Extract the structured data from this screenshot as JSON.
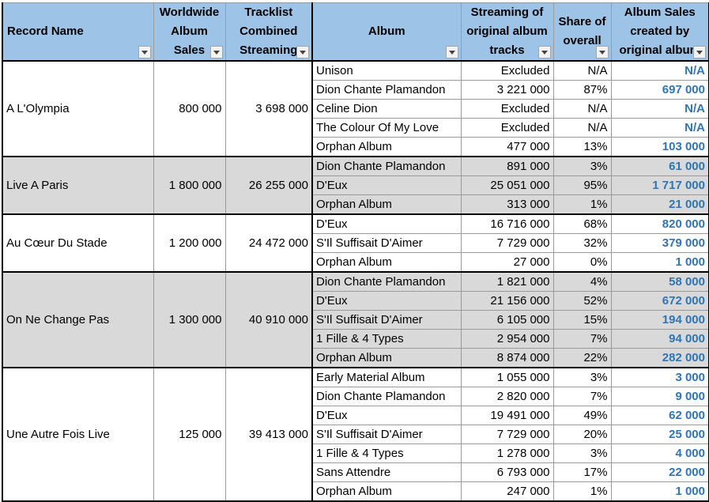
{
  "headers": [
    {
      "lines": [
        "Record Name"
      ]
    },
    {
      "lines": [
        "Worldwide",
        "Album",
        "Sales"
      ]
    },
    {
      "lines": [
        "Tracklist",
        "Combined",
        "Streaming"
      ]
    },
    {
      "lines": [
        "Album"
      ]
    },
    {
      "lines": [
        "Streaming of",
        "original album",
        "tracks"
      ]
    },
    {
      "lines": [
        "Share of",
        "overall"
      ]
    },
    {
      "lines": [
        "Album Sales",
        "created  by",
        "original album"
      ]
    }
  ],
  "records": [
    {
      "name": "A L'Olympia",
      "sales": "800 000",
      "streaming": "3 698 000",
      "grey": false,
      "rows": [
        {
          "album": "Unison",
          "stream": "Excluded",
          "share": "N/A",
          "sales": "N/A"
        },
        {
          "album": "Dion Chante Plamandon",
          "stream": "3 221 000",
          "share": "87%",
          "sales": "697 000"
        },
        {
          "album": "Celine Dion",
          "stream": "Excluded",
          "share": "N/A",
          "sales": "N/A"
        },
        {
          "album": "The Colour Of My Love",
          "stream": "Excluded",
          "share": "N/A",
          "sales": "N/A"
        },
        {
          "album": "Orphan Album",
          "stream": "477 000",
          "share": "13%",
          "sales": "103 000"
        }
      ]
    },
    {
      "name": "Live A Paris",
      "sales": "1 800 000",
      "streaming": "26 255 000",
      "grey": true,
      "rows": [
        {
          "album": "Dion Chante Plamandon",
          "stream": "891 000",
          "share": "3%",
          "sales": "61 000"
        },
        {
          "album": "D'Eux",
          "stream": "25 051 000",
          "share": "95%",
          "sales": "1 717 000"
        },
        {
          "album": "Orphan Album",
          "stream": "313 000",
          "share": "1%",
          "sales": "21 000"
        }
      ]
    },
    {
      "name": "Au Cœur Du Stade",
      "sales": "1 200 000",
      "streaming": "24 472 000",
      "grey": false,
      "rows": [
        {
          "album": "D'Eux",
          "stream": "16 716 000",
          "share": "68%",
          "sales": "820 000"
        },
        {
          "album": "S'Il Suffisait D'Aimer",
          "stream": "7 729 000",
          "share": "32%",
          "sales": "379 000"
        },
        {
          "album": "Orphan Album",
          "stream": "27 000",
          "share": "0%",
          "sales": "1 000"
        }
      ]
    },
    {
      "name": "On Ne Change Pas",
      "sales": "1 300 000",
      "streaming": "40 910 000",
      "grey": true,
      "rows": [
        {
          "album": "Dion Chante Plamandon",
          "stream": "1 821 000",
          "share": "4%",
          "sales": "58 000"
        },
        {
          "album": "D'Eux",
          "stream": "21 156 000",
          "share": "52%",
          "sales": "672 000"
        },
        {
          "album": "S'Il Suffisait D'Aimer",
          "stream": "6 105 000",
          "share": "15%",
          "sales": "194 000"
        },
        {
          "album": "1 Fille & 4 Types",
          "stream": "2 954 000",
          "share": "7%",
          "sales": "94 000"
        },
        {
          "album": "Orphan Album",
          "stream": "8 874 000",
          "share": "22%",
          "sales": "282 000"
        }
      ]
    },
    {
      "name": "Une Autre Fois Live",
      "sales": "125 000",
      "streaming": "39 413 000",
      "grey": false,
      "rows": [
        {
          "album": "Early Material Album",
          "stream": "1 055 000",
          "share": "3%",
          "sales": "3 000"
        },
        {
          "album": "Dion Chante Plamandon",
          "stream": "2 820 000",
          "share": "7%",
          "sales": "9 000"
        },
        {
          "album": "D'Eux",
          "stream": "19 491 000",
          "share": "49%",
          "sales": "62 000"
        },
        {
          "album": "S'Il Suffisait D'Aimer",
          "stream": "7 729 000",
          "share": "20%",
          "sales": "25 000"
        },
        {
          "album": "1 Fille & 4 Types",
          "stream": "1 278 000",
          "share": "3%",
          "sales": "4 000"
        },
        {
          "album": "Sans Attendre",
          "stream": "6 793 000",
          "share": "17%",
          "sales": "22 000"
        },
        {
          "album": "Orphan Album",
          "stream": "247 000",
          "share": "1%",
          "sales": "1 000"
        }
      ]
    }
  ]
}
